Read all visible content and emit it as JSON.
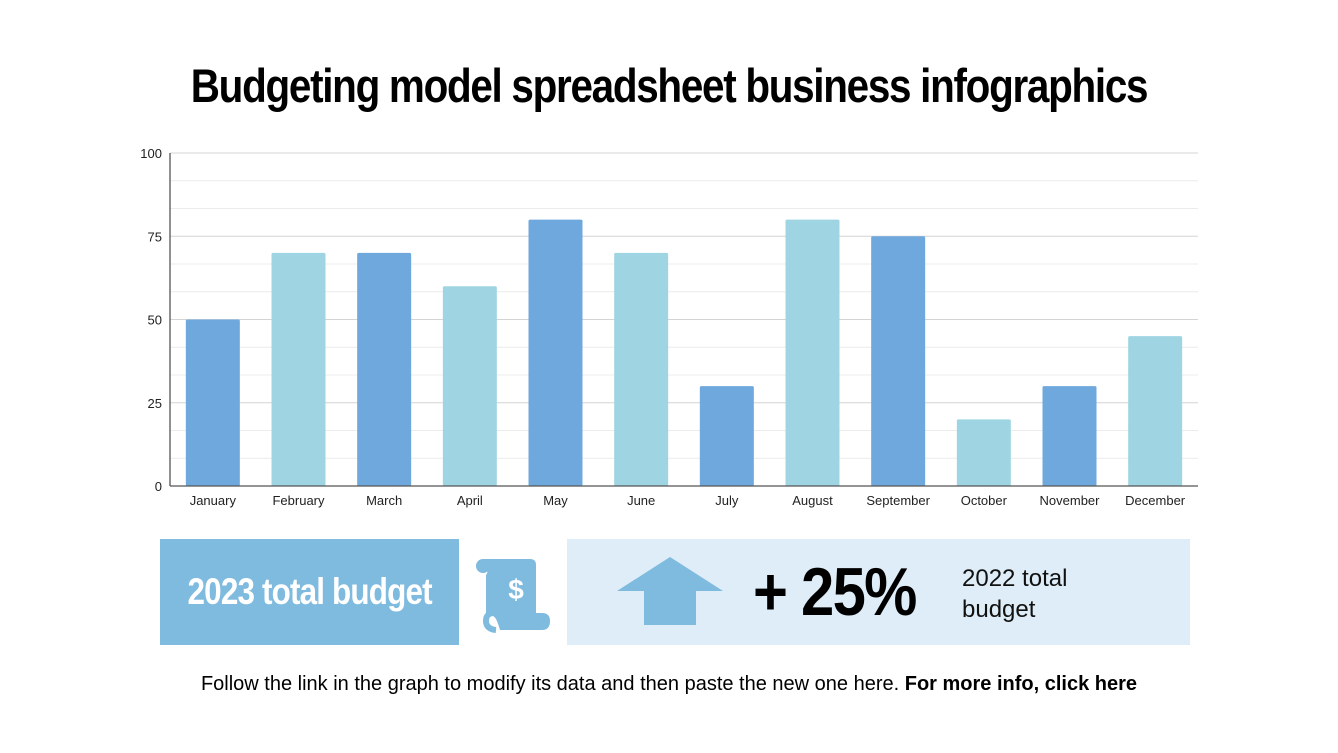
{
  "title": "Budgeting model spreadsheet business infographics",
  "chart_data": {
    "type": "bar",
    "categories": [
      "January",
      "February",
      "March",
      "April",
      "May",
      "June",
      "July",
      "August",
      "September",
      "October",
      "November",
      "December"
    ],
    "values": [
      50,
      70,
      70,
      60,
      80,
      70,
      30,
      80,
      75,
      20,
      30,
      45
    ],
    "bar_colors": [
      "#6fa8dc",
      "#9fd5e2",
      "#6fa8dc",
      "#9fd5e2",
      "#6fa8dc",
      "#9fd5e2",
      "#6fa8dc",
      "#9fd5e2",
      "#6fa8dc",
      "#9fd5e2",
      "#6fa8dc",
      "#9fd5e2"
    ],
    "ylim": [
      0,
      100
    ],
    "yticks": [
      "0",
      "25",
      "50",
      "75",
      "100"
    ],
    "grid": true,
    "title": "",
    "xlabel": "",
    "ylabel": ""
  },
  "summary": {
    "current_label": "2023 total budget",
    "scroll_icon": "dollar-scroll-icon",
    "arrow_icon": "arrow-up-icon",
    "change": "+ 25%",
    "compare_label": "2022 total budget",
    "accent": "#7fbadf",
    "panel_bg": "#deedf7"
  },
  "footer": {
    "text": "Follow the link in the graph to modify its data and then paste the new one here.",
    "link": "For more info, click here"
  }
}
